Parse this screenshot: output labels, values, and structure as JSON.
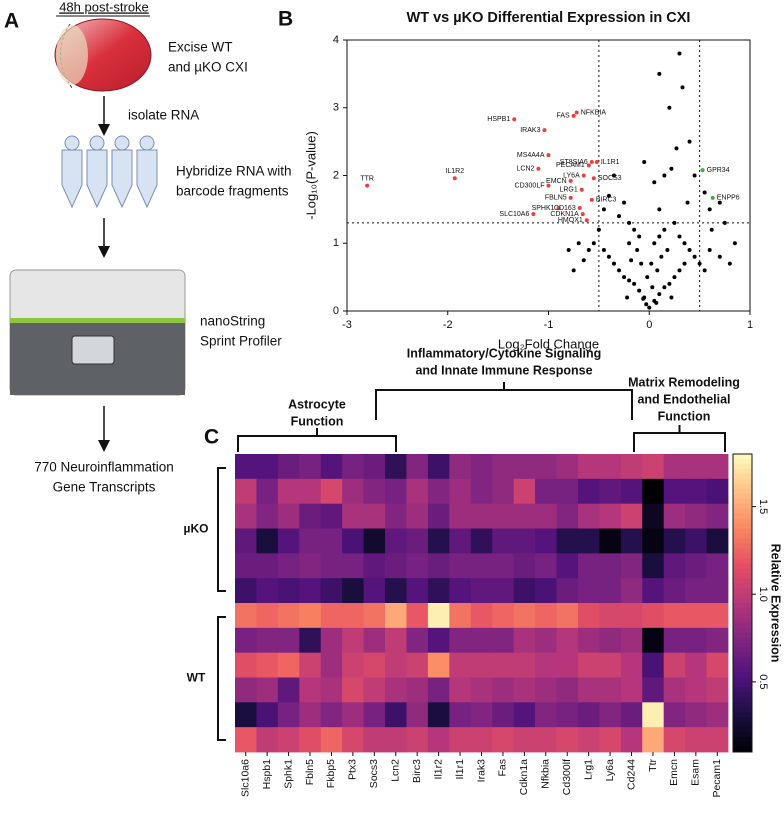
{
  "panels": [
    "A",
    "B",
    "C"
  ],
  "panel_a": {
    "timepoint": "48h post-stroke",
    "steps": [
      [
        "Excise WT",
        "and µKO CXI"
      ],
      [
        "isolate RNA"
      ],
      [
        "Hybridize RNA with",
        "barcode fragments"
      ],
      [
        "nanoString",
        "Sprint Profiler"
      ],
      [
        "770 Neuroinflammation",
        "Gene Transcripts"
      ]
    ]
  },
  "chart_data": [
    {
      "type": "scatter",
      "title": "WT vs µKO Differential Expression in CXI",
      "x_label": "Log₂Fold Change",
      "y_label": "-Log₁₀(P-value)",
      "xlim": [
        -3,
        1
      ],
      "ylim": [
        0,
        4
      ],
      "xticks": [
        -3,
        -2,
        -1,
        0,
        1
      ],
      "yticks": [
        0,
        1,
        2,
        3,
        4
      ],
      "thresholds": {
        "x": [
          -0.5,
          0.5
        ],
        "y": 1.3
      },
      "series": [
        {
          "color": "#000000",
          "x": [
            0.3,
            0.33,
            0.1,
            0.22,
            0.45,
            0.4,
            0.2,
            0.55,
            0.6,
            0.62,
            0.7,
            0.38,
            -0.35,
            -0.4,
            -0.45,
            -0.3,
            -0.2,
            -0.15,
            -0.1,
            0.05,
            0.1,
            0.15,
            0.25,
            0.3,
            0.35,
            0.4,
            0.45,
            0.5,
            0.55,
            0.6,
            -0.5,
            -0.55,
            -0.6,
            -0.45,
            -0.4,
            -0.35,
            -0.3,
            -0.25,
            -0.2,
            -0.15,
            -0.1,
            -0.05,
            0,
            0.05,
            0.1,
            0.15,
            0.2,
            0.25,
            0.3,
            0.35,
            -0.7,
            -0.8,
            -0.65,
            -0.75,
            0.7,
            0.8,
            0.75,
            0.85,
            -0.12,
            0.02,
            -0.02,
            0.08,
            -0.08,
            0.12,
            -0.18,
            0.18,
            0.03,
            -0.03,
            0.07,
            -0.06,
            0.1,
            -0.25,
            -0.05,
            0.27,
            0.15,
            -0.2,
            0.22,
            -0.22,
            0.05
          ],
          "y": [
            3.8,
            3.3,
            3.5,
            2.1,
            2.0,
            2.5,
            3.0,
            1.75,
            1.5,
            1.2,
            1.6,
            1.6,
            2.0,
            1.7,
            1.5,
            1.4,
            1.3,
            1.2,
            1.1,
            1.0,
            1.1,
            1.2,
            1.3,
            1.1,
            1.0,
            0.9,
            0.8,
            0.7,
            0.6,
            0.9,
            1.2,
            1.0,
            0.9,
            0.9,
            0.8,
            0.7,
            0.6,
            0.5,
            0.45,
            0.4,
            0.3,
            0.2,
            0.05,
            0.15,
            0.25,
            0.35,
            0.4,
            0.5,
            0.6,
            0.7,
            1.0,
            0.9,
            0.75,
            0.6,
            0.8,
            0.7,
            1.3,
            1.0,
            0.9,
            0.7,
            0.5,
            0.6,
            0.7,
            0.8,
            0.75,
            0.9,
            0.35,
            0.1,
            0.12,
            0.18,
            1.5,
            1.6,
            2.2,
            2.4,
            2.0,
            1.0,
            0.2,
            0.2,
            1.9
          ]
        },
        {
          "color": "#e8413b",
          "labels": [
            "TTR",
            "IL1R2",
            "FAS",
            "NFKBIA",
            "HSPB1",
            "IRAK3",
            "MS4A4A",
            "ST8SIA6",
            "IL1R1",
            "PECAM1",
            "LCN2",
            "LY6A",
            "EMCN",
            "SOCS3",
            "CD300LF",
            "LRG1",
            "FBLN5",
            "BIRC3",
            "SPHK1",
            "CD163",
            "SLC10A6",
            "CDKN1A",
            "HMOX1"
          ],
          "x": [
            -2.8,
            -1.93,
            -0.75,
            -0.72,
            -1.34,
            -1.04,
            -1.0,
            -0.57,
            -0.52,
            -0.6,
            -1.1,
            -0.65,
            -0.78,
            -0.55,
            -1.0,
            -0.67,
            -0.78,
            -0.57,
            -0.9,
            -0.69,
            -1.15,
            -0.66,
            -0.62
          ],
          "y": [
            1.85,
            1.96,
            2.88,
            2.93,
            2.83,
            2.67,
            2.3,
            2.2,
            2.2,
            2.15,
            2.1,
            2.0,
            1.92,
            1.96,
            1.85,
            1.79,
            1.67,
            1.64,
            1.52,
            1.52,
            1.43,
            1.43,
            1.34
          ]
        },
        {
          "color": "#3cb043",
          "labels": [
            "GPR34",
            "ENPP6"
          ],
          "x": [
            0.53,
            0.63
          ],
          "y": [
            2.08,
            1.67
          ]
        }
      ]
    },
    {
      "type": "heatmap",
      "column_groups": [
        [
          "Astrocyte",
          "Function"
        ],
        [
          "Inflammatory/Cytokine Signaling",
          "and Innate Immune Response"
        ],
        [
          "Matrix Remodeling",
          "and Endothelial",
          "Function"
        ]
      ],
      "row_groups": [
        "µKO",
        "WT"
      ],
      "columns": [
        "Slc10a6",
        "Hspb1",
        "Sphk1",
        "Fbln5",
        "Fkbp5",
        "Ptx3",
        "Socs3",
        "Lcn2",
        "Birc3",
        "Il1r2",
        "Il1r1",
        "Irak3",
        "Fas",
        "Cdkn1a",
        "Nfkbia",
        "Cd300lf",
        "Lrg1",
        "Ly6a",
        "Cd244",
        "Ttr",
        "Emcn",
        "Esam",
        "Pecam1"
      ],
      "colormap": "magma",
      "colorbar_label": "Relative Expression",
      "zlim": [
        0.1,
        1.8
      ],
      "zticks": [
        0.5,
        {
          "value": 1,
          "label": "1.0"
        },
        1.5
      ],
      "values": [
        [
          0.55,
          0.55,
          0.65,
          0.7,
          0.55,
          0.7,
          0.65,
          0.4,
          0.75,
          0.45,
          0.8,
          0.75,
          0.8,
          0.8,
          0.8,
          0.85,
          0.95,
          0.95,
          1.0,
          1.05,
          0.9,
          0.9,
          0.9
        ],
        [
          1.0,
          0.7,
          0.95,
          0.95,
          1.1,
          0.85,
          0.75,
          0.7,
          0.9,
          0.75,
          0.85,
          0.75,
          0.8,
          1.05,
          0.7,
          0.7,
          0.55,
          0.6,
          0.55,
          0.1,
          0.55,
          0.55,
          0.5
        ],
        [
          0.9,
          0.75,
          0.85,
          0.65,
          0.6,
          0.9,
          0.9,
          0.75,
          0.85,
          0.65,
          0.85,
          0.85,
          0.85,
          0.85,
          0.85,
          0.75,
          0.9,
          0.95,
          1.05,
          0.2,
          0.85,
          0.8,
          0.75
        ],
        [
          0.6,
          0.3,
          0.55,
          0.7,
          0.7,
          0.5,
          0.25,
          0.6,
          0.65,
          0.35,
          0.6,
          0.4,
          0.6,
          0.6,
          0.55,
          0.35,
          0.35,
          0.15,
          0.35,
          0.15,
          0.35,
          0.45,
          0.3
        ],
        [
          0.65,
          0.65,
          0.7,
          0.75,
          0.7,
          0.7,
          0.6,
          0.65,
          0.7,
          0.65,
          0.7,
          0.7,
          0.7,
          0.65,
          0.7,
          0.55,
          0.7,
          0.7,
          0.75,
          0.3,
          0.6,
          0.65,
          0.7
        ],
        [
          0.45,
          0.55,
          0.5,
          0.55,
          0.45,
          0.3,
          0.55,
          0.35,
          0.55,
          0.4,
          0.55,
          0.6,
          0.6,
          0.45,
          0.5,
          0.65,
          0.7,
          0.7,
          0.8,
          0.55,
          0.65,
          0.7,
          0.7
        ],
        [
          1.3,
          1.25,
          1.3,
          1.35,
          1.25,
          1.25,
          1.3,
          1.5,
          1.2,
          1.75,
          1.3,
          1.2,
          1.25,
          1.3,
          1.25,
          1.3,
          1.15,
          1.1,
          1.1,
          1.15,
          1.2,
          1.2,
          1.2
        ],
        [
          0.7,
          0.75,
          0.75,
          0.4,
          0.85,
          1.0,
          0.85,
          1.0,
          0.75,
          0.55,
          0.75,
          0.75,
          0.75,
          0.9,
          0.85,
          0.95,
          0.85,
          0.8,
          0.85,
          0.15,
          0.7,
          0.7,
          0.75
        ],
        [
          1.15,
          1.2,
          1.25,
          1.05,
          0.85,
          1.05,
          1.1,
          1.0,
          1.05,
          1.4,
          1.0,
          1.0,
          1.0,
          1.0,
          0.95,
          0.95,
          1.05,
          1.05,
          0.95,
          0.5,
          1.05,
          0.95,
          1.1
        ],
        [
          0.8,
          0.85,
          0.6,
          0.95,
          0.9,
          1.1,
          1.0,
          0.9,
          0.85,
          0.7,
          0.95,
          0.9,
          0.85,
          0.9,
          0.85,
          0.8,
          0.9,
          0.9,
          0.95,
          0.6,
          0.9,
          0.95,
          1.0
        ],
        [
          0.3,
          0.5,
          0.7,
          0.85,
          0.75,
          0.85,
          0.7,
          0.45,
          0.8,
          0.3,
          0.7,
          0.75,
          0.65,
          0.55,
          0.75,
          0.7,
          0.65,
          0.75,
          0.65,
          1.75,
          0.75,
          0.8,
          0.85
        ],
        [
          1.2,
          1.0,
          1.05,
          1.15,
          1.25,
          1.1,
          1.0,
          1.0,
          1.05,
          0.95,
          1.05,
          1.05,
          1.1,
          1.05,
          1.05,
          1.1,
          1.05,
          1.1,
          0.95,
          1.5,
          1.1,
          1.05,
          1.05
        ]
      ]
    }
  ]
}
